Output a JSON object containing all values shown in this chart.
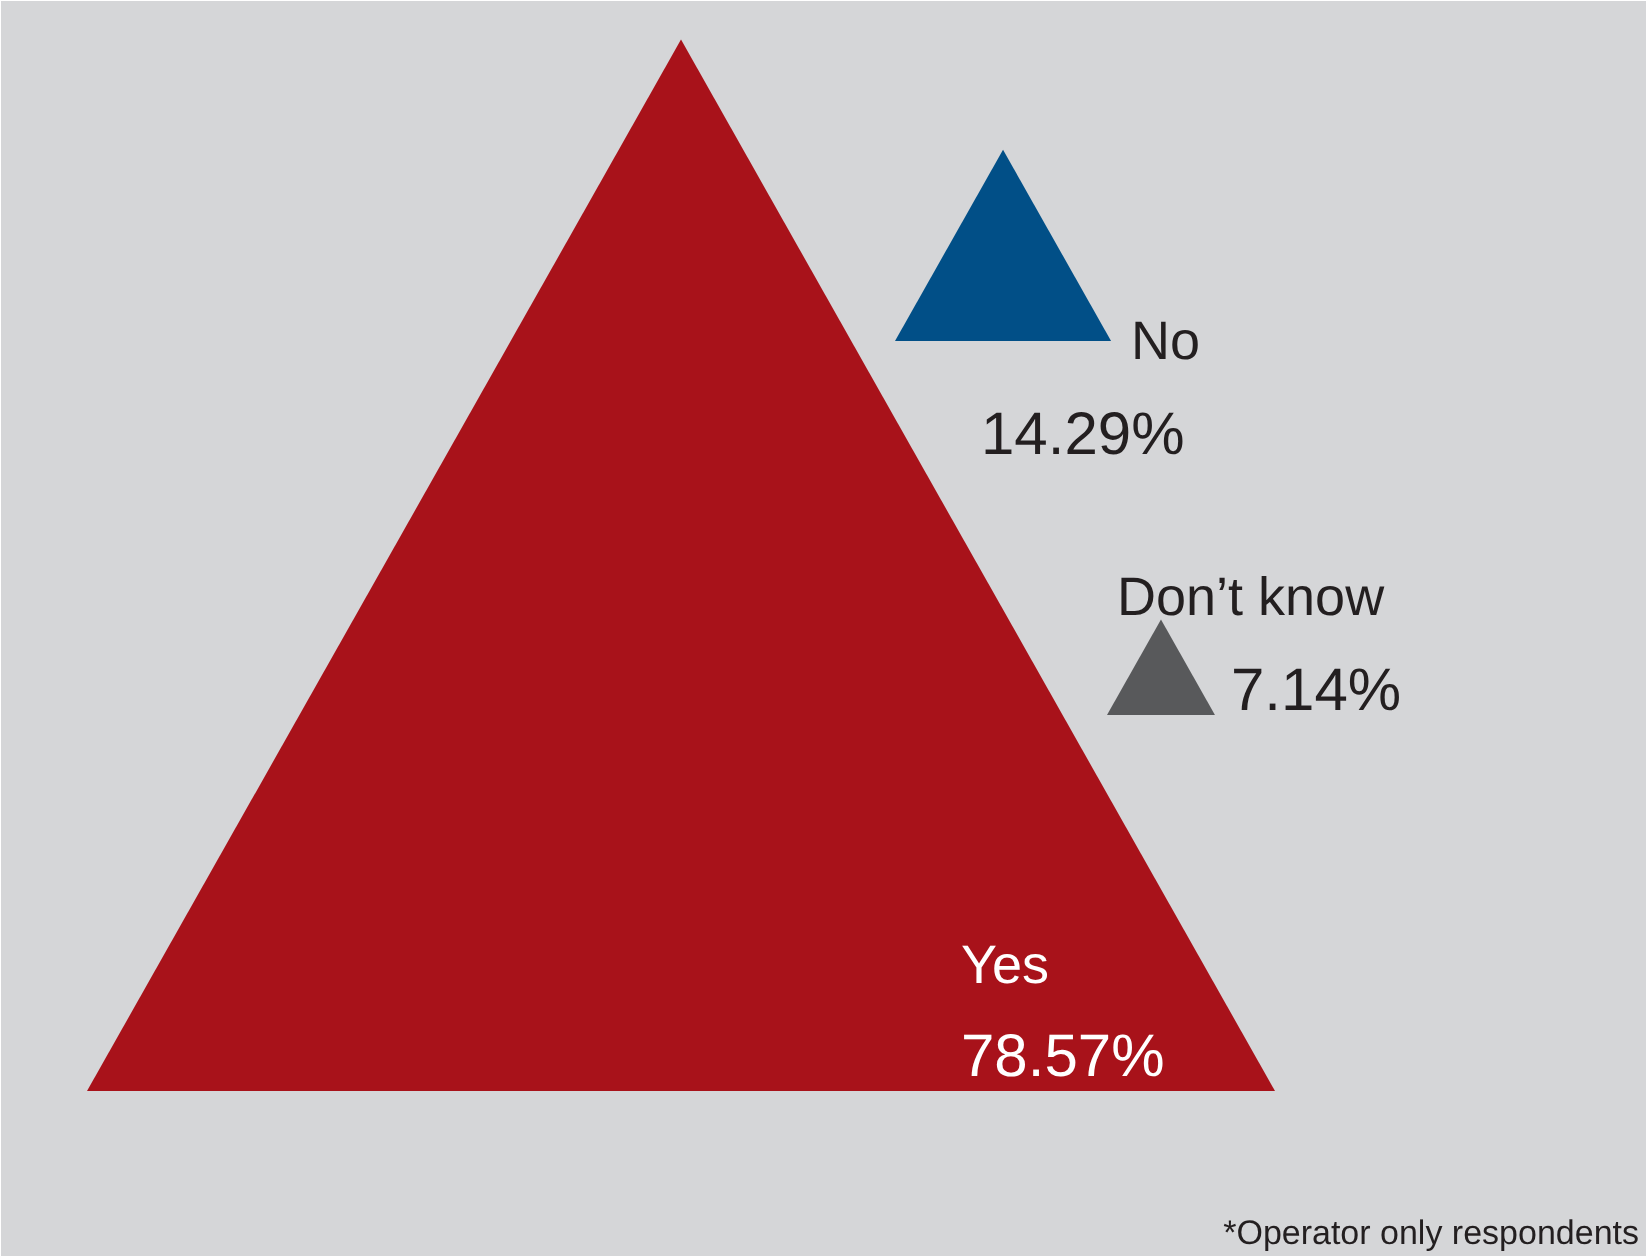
{
  "chart_data": {
    "type": "other",
    "categories": [
      "Yes",
      "No",
      "Don’t know"
    ],
    "values": [
      78.57,
      14.29,
      7.14
    ],
    "value_labels": [
      "78.57%",
      "14.29%",
      "7.14%"
    ],
    "colors": [
      "#a8121a",
      "#014f87",
      "#58595b"
    ],
    "annotations": [
      "*Operator only respondents"
    ]
  }
}
